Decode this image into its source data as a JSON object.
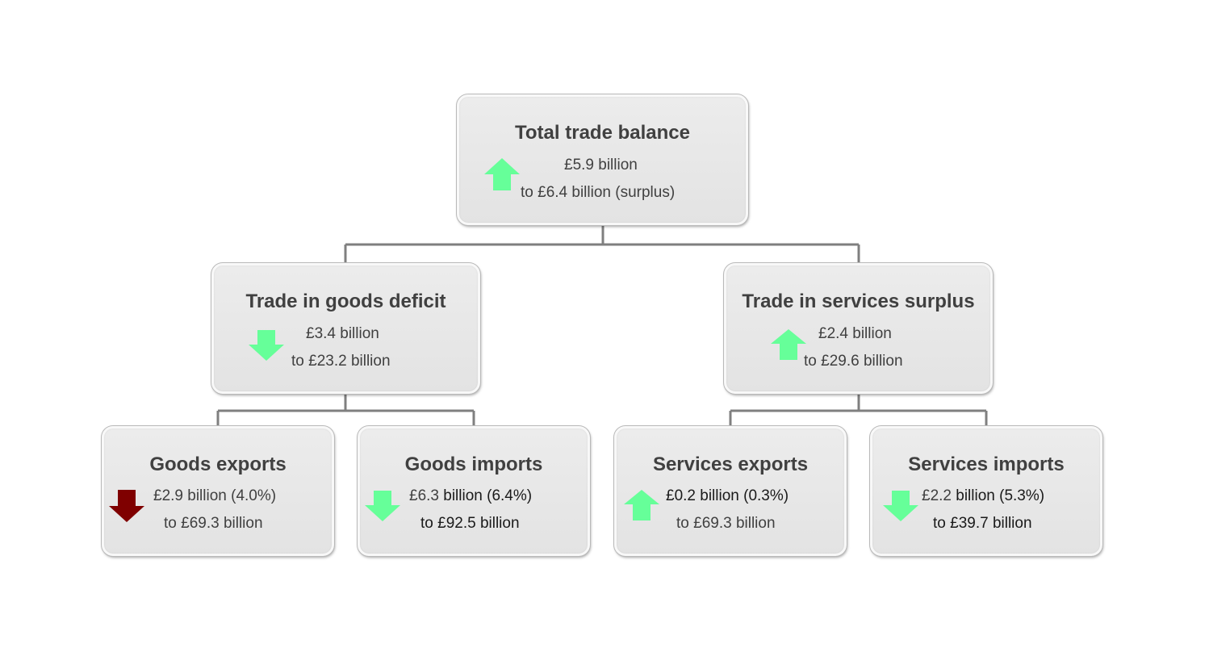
{
  "colors": {
    "arrow_up": "#66ff99",
    "arrow_down_good": "#66ff99",
    "arrow_down_bad": "#7f0000",
    "box_fill": "#e6e6e6",
    "connector": "#7f7f7f"
  },
  "total": {
    "title": "Total trade balance",
    "direction": "up",
    "change": "£5.9 billion",
    "level": "to £6.4 billion (surplus)"
  },
  "goods": {
    "title": "Trade in goods deficit",
    "direction": "down",
    "change": "£3.4 billion",
    "level": "to £23.2 billion"
  },
  "services": {
    "title": "Trade in services surplus",
    "direction": "up",
    "change": "£2.4 billion",
    "level": "to £29.6 billion"
  },
  "goods_exports": {
    "title": "Goods exports",
    "direction": "down",
    "change_amount": "£2.9",
    "change_rest": " billion (4.0%)",
    "level": "to £69.3 billion"
  },
  "goods_imports": {
    "title": "Goods imports",
    "direction": "down",
    "change_amount": "£6.3",
    "change_rest": " billion (6.4%)",
    "level": "to £92.5 billion"
  },
  "services_exports": {
    "title": "Services exports",
    "direction": "up",
    "change_amount": "£0.2",
    "change_rest": " billion (0.3%)",
    "level": "to £69.3 billion"
  },
  "services_imports": {
    "title": "Services imports",
    "direction": "down",
    "change_amount": "£2.2",
    "change_rest": " billion (5.3%)",
    "level": "to £39.7 billion"
  }
}
